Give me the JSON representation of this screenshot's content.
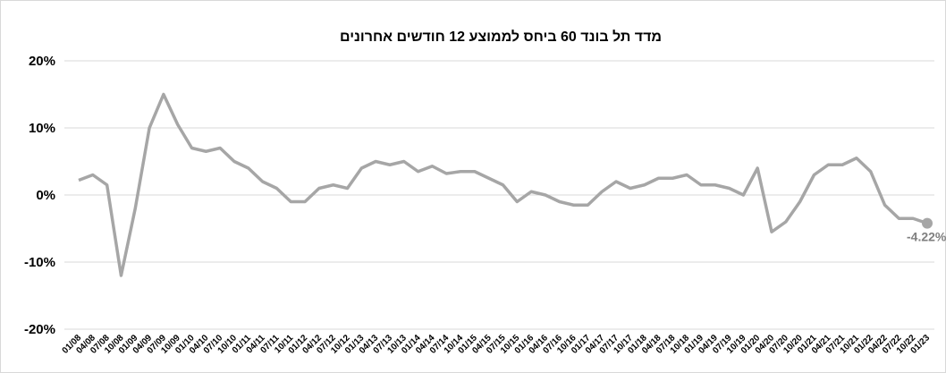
{
  "chart_data": {
    "type": "line",
    "title": "מדד תל בונד 60 ביחס לממוצע 12 חודשים אחרונים",
    "categories": [
      "01/08",
      "04/08",
      "07/08",
      "10/08",
      "01/09",
      "04/09",
      "07/09",
      "10/09",
      "01/10",
      "04/10",
      "07/10",
      "10/10",
      "01/11",
      "04/11",
      "07/11",
      "10/11",
      "01/12",
      "04/12",
      "07/12",
      "10/12",
      "01/13",
      "04/13",
      "07/13",
      "10/13",
      "01/14",
      "04/14",
      "07/14",
      "10/14",
      "01/15",
      "04/15",
      "07/15",
      "10/15",
      "01/16",
      "04/16",
      "07/16",
      "10/16",
      "01/17",
      "04/17",
      "07/17",
      "10/17",
      "01/18",
      "04/18",
      "07/18",
      "10/18",
      "01/19",
      "04/19",
      "07/19",
      "10/19",
      "01/20",
      "04/20",
      "07/20",
      "10/20",
      "01/21",
      "04/21",
      "07/21",
      "10/21",
      "01/22",
      "04/22",
      "07/22",
      "10/22",
      "01/23"
    ],
    "series": [
      {
        "name": "מדד תל בונד 60",
        "color": "#a6a6a6",
        "values": [
          2.2,
          3.0,
          1.5,
          -12,
          -2,
          10,
          15,
          10.5,
          7,
          6.5,
          7,
          5,
          4,
          2,
          1,
          -1,
          -1,
          1,
          1.5,
          1,
          4,
          5,
          4.5,
          5,
          3.5,
          4.3,
          3.2,
          3.5,
          3.5,
          2.5,
          1.5,
          -1,
          0.5,
          0,
          -1,
          -1.5,
          -1.5,
          0.5,
          2,
          1,
          1.5,
          2.5,
          2.5,
          3,
          1.5,
          1.5,
          1,
          0,
          4,
          -5.5,
          -4,
          -1,
          3,
          4.5,
          4.5,
          5.5,
          3.5,
          -1.5,
          -3.5,
          -3.5,
          -4.22
        ],
        "value_labels": [
          null,
          null,
          null,
          null,
          null,
          null,
          null,
          null,
          null,
          null,
          null,
          null,
          null,
          null,
          null,
          null,
          null,
          null,
          null,
          null,
          null,
          null,
          null,
          null,
          null,
          null,
          null,
          null,
          null,
          null,
          null,
          null,
          null,
          null,
          null,
          null,
          null,
          null,
          null,
          null,
          null,
          null,
          null,
          null,
          null,
          null,
          null,
          null,
          null,
          null,
          null,
          null,
          null,
          null,
          null,
          null,
          null,
          null,
          null,
          null,
          "-4.22%"
        ]
      }
    ],
    "ylim": [
      -20,
      20
    ],
    "yticks": [
      {
        "value": -20,
        "label": "-20%"
      },
      {
        "value": -10,
        "label": "-10%"
      },
      {
        "value": 0,
        "label": "0%"
      },
      {
        "value": 10,
        "label": "10%"
      },
      {
        "value": 20,
        "label": "20%"
      }
    ],
    "grid": true
  }
}
